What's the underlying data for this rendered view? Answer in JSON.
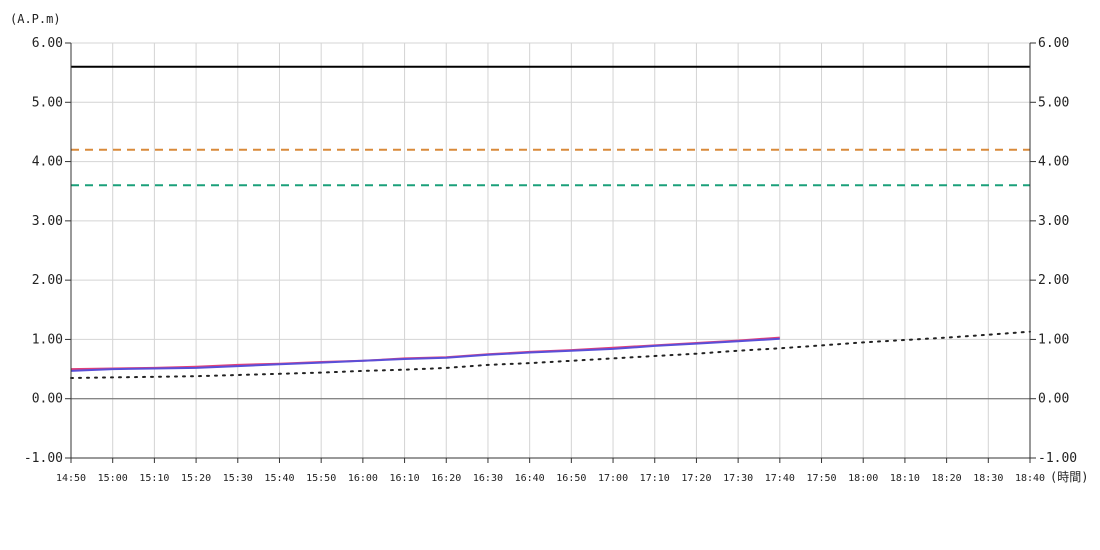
{
  "chart_data": {
    "type": "line",
    "y_unit_label": "(A.P.m)",
    "x_unit_label": "(時間)",
    "ylim": [
      -1.0,
      6.0
    ],
    "yticks": [
      "6.00",
      "5.00",
      "4.00",
      "3.00",
      "2.00",
      "1.00",
      "0.00",
      "-1.00"
    ],
    "ytick_values": [
      6,
      5,
      4,
      3,
      2,
      1,
      0,
      -1
    ],
    "x_categories": [
      "14:50",
      "15:00",
      "15:10",
      "15:20",
      "15:30",
      "15:40",
      "15:50",
      "16:00",
      "16:10",
      "16:20",
      "16:30",
      "16:40",
      "16:50",
      "17:00",
      "17:10",
      "17:20",
      "17:30",
      "17:40",
      "17:50",
      "18:00",
      "18:10",
      "18:20",
      "18:30",
      "18:40"
    ],
    "grid": true,
    "reference_lines": [
      {
        "value": 5.6,
        "color": "#000000",
        "style": "solid"
      },
      {
        "value": 4.2,
        "color": "#d98a3a",
        "style": "dashed"
      },
      {
        "value": 3.6,
        "color": "#1aa07a",
        "style": "dashed"
      }
    ],
    "series": [
      {
        "color": "#e0407a",
        "style": "solid",
        "values": [
          0.5,
          0.51,
          0.52,
          0.54,
          0.57,
          0.59,
          0.62,
          0.64,
          0.68,
          0.7,
          0.75,
          0.79,
          0.82,
          0.86,
          0.9,
          0.94,
          0.98,
          1.03
        ]
      },
      {
        "color": "#5a4fd8",
        "style": "solid",
        "values": [
          0.47,
          0.5,
          0.51,
          0.52,
          0.55,
          0.58,
          0.61,
          0.64,
          0.67,
          0.69,
          0.74,
          0.78,
          0.81,
          0.84,
          0.89,
          0.93,
          0.97,
          1.01
        ]
      },
      {
        "color": "#222222",
        "style": "dotted",
        "values": [
          0.35,
          0.36,
          0.37,
          0.38,
          0.4,
          0.42,
          0.44,
          0.47,
          0.49,
          0.52,
          0.57,
          0.6,
          0.64,
          0.68,
          0.72,
          0.76,
          0.81,
          0.85,
          0.9,
          0.95,
          0.99,
          1.03,
          1.08,
          1.13
        ]
      }
    ]
  }
}
